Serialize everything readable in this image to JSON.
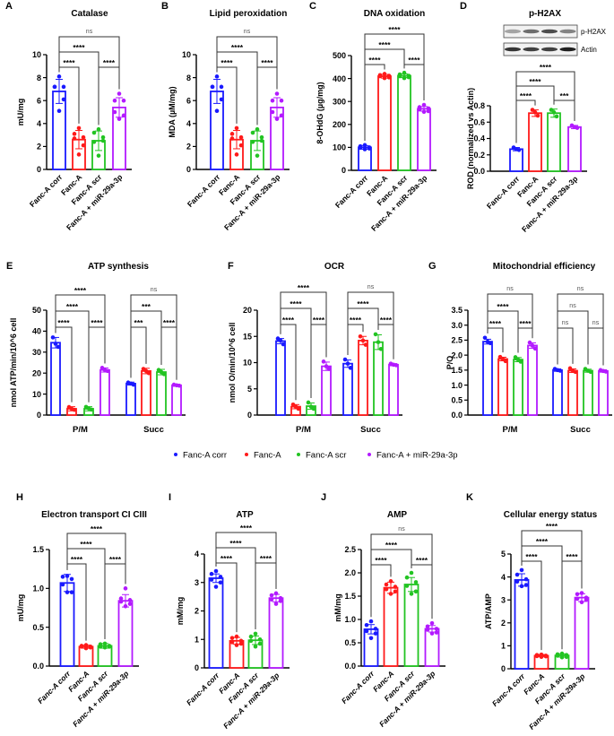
{
  "categories": [
    "Fanc-A corr",
    "Fanc-A",
    "Fanc-A scr",
    "Fanc-A + miR-29a-3p"
  ],
  "colors": [
    "#1a1aff",
    "#ff1a1a",
    "#22c422",
    "#b31aff"
  ],
  "legend": [
    "Fanc-A corr",
    "Fanc-A",
    "Fanc-A scr",
    "Fanc-A + miR-29a-3p"
  ],
  "blot": {
    "labels": [
      "p-H2AX",
      "Actin"
    ]
  },
  "chart_data": [
    {
      "id": "A",
      "type": "bar",
      "letter": "A",
      "title": "Catalase",
      "ylabel": "mU/mg",
      "ylim": [
        0,
        10
      ],
      "yticks": [
        "0",
        "2",
        "4",
        "6",
        "8",
        "10"
      ],
      "groups": null,
      "values": [
        [
          6.8,
          2.6,
          2.5,
          5.4
        ]
      ],
      "errors": [
        [
          1.05,
          0.8,
          0.85,
          0.85
        ]
      ],
      "points": [
        [
          [
            8.1,
            7.2,
            7.2,
            7.2,
            6.1,
            5.1
          ],
          [
            3.6,
            3.1,
            2.8,
            2.7,
            2.1,
            1.3
          ],
          [
            3.5,
            3.2,
            2.8,
            2.4,
            2.5,
            1.2
          ],
          [
            6.6,
            6.0,
            6.0,
            5.0,
            4.7,
            4.4
          ]
        ]
      ],
      "significance": [
        [
          [
            0,
            1,
            1,
            "****"
          ],
          [
            2,
            3,
            1,
            "****"
          ],
          [
            0,
            2,
            2,
            "****"
          ],
          [
            0,
            3,
            3,
            "ns"
          ]
        ]
      ]
    },
    {
      "id": "B",
      "type": "bar",
      "letter": "B",
      "title": "Lipid peroxidation",
      "ylabel": "MDA (µM/mg)",
      "ylim": [
        0,
        10
      ],
      "yticks": [
        "0",
        "2",
        "4",
        "6",
        "8",
        "10"
      ],
      "groups": null,
      "values": [
        [
          6.8,
          2.6,
          2.5,
          5.4
        ]
      ],
      "errors": [
        [
          1.05,
          0.8,
          0.85,
          0.85
        ]
      ],
      "points": [
        [
          [
            8.1,
            7.2,
            7.2,
            7.2,
            6.1,
            5.1
          ],
          [
            3.6,
            3.1,
            2.8,
            2.7,
            2.1,
            1.3
          ],
          [
            3.5,
            3.2,
            2.8,
            2.4,
            2.5,
            1.2
          ],
          [
            6.6,
            6.0,
            6.0,
            5.0,
            4.7,
            4.4
          ]
        ]
      ],
      "significance": [
        [
          [
            0,
            1,
            1,
            "****"
          ],
          [
            2,
            3,
            1,
            "****"
          ],
          [
            0,
            2,
            2,
            "****"
          ],
          [
            0,
            3,
            3,
            "ns"
          ]
        ]
      ]
    },
    {
      "id": "C",
      "type": "bar",
      "letter": "C",
      "title": "DNA oxidation",
      "ylabel": "8-OHdG (µg/mg)",
      "ylim": [
        0,
        500
      ],
      "yticks": [
        "0",
        "100",
        "200",
        "300",
        "400",
        "500"
      ],
      "groups": null,
      "values": [
        [
          100,
          410,
          412,
          268
        ]
      ],
      "errors": [
        [
          8,
          8,
          8,
          10
        ]
      ],
      "points": [
        [
          [
            110,
            105,
            100,
            98,
            95,
            92
          ],
          [
            420,
            415,
            412,
            410,
            405,
            402
          ],
          [
            425,
            418,
            412,
            410,
            406,
            402
          ],
          [
            285,
            275,
            270,
            265,
            258,
            255
          ]
        ]
      ],
      "significance": [
        [
          [
            0,
            1,
            1,
            "****"
          ],
          [
            2,
            3,
            1,
            "****"
          ],
          [
            0,
            2,
            2,
            "****"
          ],
          [
            0,
            3,
            3,
            "****"
          ]
        ]
      ]
    },
    {
      "id": "D",
      "type": "bar",
      "letter": "D",
      "title": "p-H2AX",
      "ylabel": "ROD (normalized vs Actin)",
      "ylim": [
        0,
        0.8
      ],
      "yticks": [
        "0.0",
        "0.2",
        "0.4",
        "0.6",
        "0.8"
      ],
      "groups": null,
      "values": [
        [
          0.27,
          0.71,
          0.71,
          0.54
        ]
      ],
      "errors": [
        [
          0.02,
          0.04,
          0.05,
          0.02
        ]
      ],
      "points": [
        [
          [
            0.29,
            0.27,
            0.26
          ],
          [
            0.75,
            0.72,
            0.68
          ],
          [
            0.75,
            0.72,
            0.67
          ],
          [
            0.56,
            0.54,
            0.53
          ]
        ]
      ],
      "significance": [
        [
          [
            0,
            1,
            1,
            "****"
          ],
          [
            2,
            3,
            1,
            "***"
          ],
          [
            0,
            2,
            2,
            "****"
          ],
          [
            0,
            3,
            3,
            "****"
          ]
        ]
      ]
    },
    {
      "id": "E",
      "type": "bar",
      "letter": "E",
      "title": "ATP synthesis",
      "ylabel": "nmol ATP/min/10^6 cell",
      "ylim": [
        0,
        50
      ],
      "yticks": [
        "0",
        "10",
        "20",
        "30",
        "40",
        "50"
      ],
      "groups": [
        "P/M",
        "Succ"
      ],
      "values": [
        [
          34.5,
          3,
          3,
          21.5
        ],
        [
          15,
          21,
          20.5,
          14.2
        ]
      ],
      "errors": [
        [
          2.5,
          1,
          1,
          1
        ],
        [
          0.7,
          1.3,
          1.3,
          0.5
        ]
      ],
      "points": [
        [
          [
            37,
            34,
            32.5
          ],
          [
            3.8,
            3,
            2.5
          ],
          [
            3.9,
            3.2,
            2.6
          ],
          [
            22.5,
            21.5,
            21
          ]
        ],
        [
          [
            15.5,
            15,
            14.5
          ],
          [
            22,
            21,
            20
          ],
          [
            21.5,
            20.5,
            19.5
          ],
          [
            14.5,
            14.2,
            14
          ]
        ]
      ],
      "significance": [
        [
          [
            0,
            1,
            1,
            "****"
          ],
          [
            2,
            3,
            1,
            "****"
          ],
          [
            0,
            2,
            2,
            "****"
          ],
          [
            0,
            3,
            3,
            "****"
          ]
        ],
        [
          [
            0,
            1,
            1,
            "***"
          ],
          [
            2,
            3,
            1,
            "****"
          ],
          [
            0,
            2,
            2,
            "***"
          ],
          [
            0,
            3,
            3,
            "ns"
          ]
        ]
      ]
    },
    {
      "id": "F",
      "type": "bar",
      "letter": "F",
      "title": "OCR",
      "ylabel": "nmol O/min/10^6 cell",
      "ylim": [
        0,
        20
      ],
      "yticks": [
        "0",
        "5",
        "10",
        "15",
        "20"
      ],
      "groups": [
        "P/M",
        "Succ"
      ],
      "values": [
        [
          14.1,
          1.6,
          1.7,
          9.3
        ],
        [
          9.8,
          14.2,
          13.9,
          9.6
        ]
      ],
      "errors": [
        [
          0.5,
          0.4,
          0.6,
          0.8
        ],
        [
          0.7,
          0.8,
          1.4,
          0.2
        ]
      ],
      "points": [
        [
          [
            14.6,
            14.2,
            13.5
          ],
          [
            2,
            1.6,
            1.2
          ],
          [
            2.4,
            1.6,
            1.2
          ],
          [
            10.2,
            9.3,
            8.8
          ]
        ],
        [
          [
            10.6,
            9.8,
            9
          ],
          [
            15,
            14.2,
            13.4
          ],
          [
            15.4,
            13.9,
            12.6
          ],
          [
            9.8,
            9.6,
            9.5
          ]
        ]
      ],
      "significance": [
        [
          [
            0,
            1,
            1,
            "****"
          ],
          [
            2,
            3,
            1,
            "****"
          ],
          [
            0,
            2,
            2,
            "****"
          ],
          [
            0,
            3,
            3,
            "****"
          ]
        ],
        [
          [
            0,
            1,
            1,
            "****"
          ],
          [
            2,
            3,
            1,
            "****"
          ],
          [
            0,
            2,
            2,
            "****"
          ],
          [
            0,
            3,
            3,
            "ns"
          ]
        ]
      ]
    },
    {
      "id": "G",
      "type": "bar",
      "letter": "G",
      "title": "Mitochondrial efficiency",
      "ylabel": "P/O",
      "ylim": [
        0,
        3.5
      ],
      "yticks": [
        "0.0",
        "0.5",
        "1.0",
        "1.5",
        "2.0",
        "2.5",
        "3.0",
        "3.5"
      ],
      "groups": [
        "P/M",
        "Succ"
      ],
      "values": [
        [
          2.45,
          1.87,
          1.85,
          2.32
        ],
        [
          1.5,
          1.48,
          1.48,
          1.47
        ]
      ],
      "errors": [
        [
          0.08,
          0.06,
          0.07,
          0.09
        ],
        [
          0.04,
          0.06,
          0.05,
          0.04
        ]
      ],
      "points": [
        [
          [
            2.58,
            2.45,
            2.4
          ],
          [
            1.94,
            1.87,
            1.8
          ],
          [
            1.93,
            1.85,
            1.78
          ],
          [
            2.42,
            2.32,
            2.22
          ]
        ],
        [
          [
            1.54,
            1.5,
            1.48
          ],
          [
            1.56,
            1.48,
            1.44
          ],
          [
            1.54,
            1.48,
            1.44
          ],
          [
            1.5,
            1.47,
            1.45
          ]
        ]
      ],
      "significance": [
        [
          [
            0,
            1,
            1,
            "****"
          ],
          [
            2,
            3,
            1,
            "****"
          ],
          [
            0,
            2,
            2,
            "****"
          ],
          [
            0,
            3,
            3,
            "ns"
          ]
        ],
        [
          [
            0,
            1,
            1,
            "ns"
          ],
          [
            2,
            3,
            1,
            "ns"
          ],
          [
            0,
            2,
            2,
            "ns"
          ],
          [
            0,
            3,
            3,
            "ns"
          ]
        ]
      ]
    },
    {
      "id": "H",
      "type": "bar",
      "letter": "H",
      "title": "Electron transport CI CIII",
      "ylabel": "mU/mg",
      "ylim": [
        0,
        1.5
      ],
      "yticks": [
        "0.0",
        "0.5",
        "1.0",
        "1.5"
      ],
      "groups": null,
      "values": [
        [
          1.07,
          0.25,
          0.26,
          0.84
        ]
      ],
      "errors": [
        [
          0.11,
          0.02,
          0.03,
          0.08
        ]
      ],
      "points": [
        [
          [
            1.16,
            1.15,
            1.12,
            1.05,
            0.95,
            0.95
          ],
          [
            0.27,
            0.26,
            0.25,
            0.25,
            0.24,
            0.23
          ],
          [
            0.29,
            0.28,
            0.26,
            0.25,
            0.25,
            0.24
          ],
          [
            1.0,
            0.87,
            0.85,
            0.83,
            0.8,
            0.77
          ]
        ]
      ],
      "significance": [
        [
          [
            0,
            1,
            1,
            "****"
          ],
          [
            2,
            3,
            1,
            "****"
          ],
          [
            0,
            2,
            2,
            "****"
          ],
          [
            0,
            3,
            3,
            "****"
          ]
        ]
      ]
    },
    {
      "id": "I",
      "type": "bar",
      "letter": "I",
      "title": "ATP",
      "ylabel": "mM/mg",
      "ylim": [
        0,
        4
      ],
      "yticks": [
        "0",
        "1",
        "2",
        "3",
        "4"
      ],
      "groups": null,
      "values": [
        [
          3.15,
          0.95,
          0.97,
          2.45
        ]
      ],
      "errors": [
        [
          0.15,
          0.12,
          0.15,
          0.13
        ]
      ],
      "points": [
        [
          [
            3.4,
            3.3,
            3.2,
            3.1,
            3.0,
            2.85
          ],
          [
            1.1,
            1.05,
            0.95,
            0.9,
            0.85,
            0.8
          ],
          [
            1.2,
            1.1,
            1.0,
            0.95,
            0.85,
            0.75
          ],
          [
            2.62,
            2.55,
            2.45,
            2.4,
            2.35,
            2.25
          ]
        ]
      ],
      "significance": [
        [
          [
            0,
            1,
            1,
            "****"
          ],
          [
            2,
            3,
            1,
            "****"
          ],
          [
            0,
            2,
            2,
            "****"
          ],
          [
            0,
            3,
            3,
            "****"
          ]
        ]
      ]
    },
    {
      "id": "J",
      "type": "bar",
      "letter": "J",
      "title": "AMP",
      "ylabel": "mM/mg",
      "ylim": [
        0,
        2.5
      ],
      "yticks": [
        "0.0",
        "0.5",
        "1.0",
        "1.5",
        "2.0",
        "2.5"
      ],
      "groups": null,
      "values": [
        [
          0.79,
          1.68,
          1.75,
          0.8
        ]
      ],
      "errors": [
        [
          0.1,
          0.12,
          0.15,
          0.07
        ]
      ],
      "points": [
        [
          [
            0.96,
            0.88,
            0.8,
            0.75,
            0.7,
            0.6
          ],
          [
            1.82,
            1.75,
            1.7,
            1.65,
            1.6,
            1.55
          ],
          [
            2.0,
            1.9,
            1.8,
            1.72,
            1.6,
            1.55
          ],
          [
            0.92,
            0.85,
            0.8,
            0.78,
            0.72,
            0.7
          ]
        ]
      ],
      "significance": [
        [
          [
            0,
            1,
            1,
            "****"
          ],
          [
            2,
            3,
            1,
            "****"
          ],
          [
            0,
            2,
            2,
            "****"
          ],
          [
            0,
            3,
            3,
            "ns"
          ]
        ]
      ]
    },
    {
      "id": "K",
      "type": "bar",
      "letter": "K",
      "title": "Cellular energy status",
      "ylabel": "ATP/AMP",
      "ylim": [
        0,
        5
      ],
      "yticks": [
        "0",
        "1",
        "2",
        "3",
        "4",
        "5"
      ],
      "groups": null,
      "values": [
        [
          3.87,
          0.57,
          0.58,
          3.1
        ]
      ],
      "errors": [
        [
          0.27,
          0.05,
          0.07,
          0.17
        ]
      ],
      "points": [
        [
          [
            4.3,
            4.1,
            3.9,
            3.8,
            3.65,
            3.6
          ],
          [
            0.62,
            0.6,
            0.57,
            0.55,
            0.54,
            0.52
          ],
          [
            0.66,
            0.63,
            0.6,
            0.57,
            0.52,
            0.5
          ],
          [
            3.3,
            3.25,
            3.1,
            3.05,
            3.0,
            2.9
          ]
        ]
      ],
      "significance": [
        [
          [
            0,
            1,
            1,
            "****"
          ],
          [
            2,
            3,
            1,
            "****"
          ],
          [
            0,
            2,
            2,
            "****"
          ],
          [
            0,
            3,
            3,
            "****"
          ]
        ]
      ]
    }
  ]
}
